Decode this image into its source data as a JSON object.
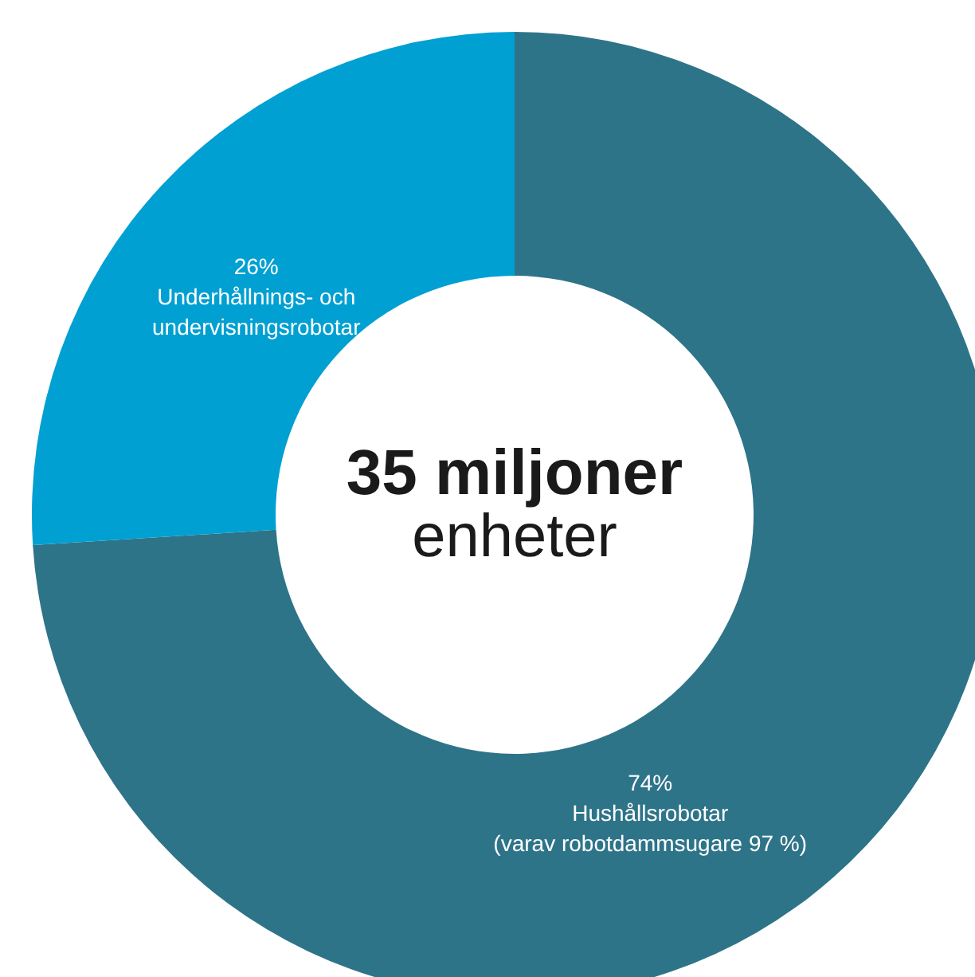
{
  "chart_data": {
    "type": "donut",
    "title": "35 miljoner",
    "subtitle": "enheter",
    "categories": [
      "Hushållsrobotar",
      "Underhållnings- och undervisningsrobotar"
    ],
    "values": [
      74,
      26
    ],
    "value_labels": [
      "74%",
      "26%"
    ],
    "colors": [
      "#2e7489",
      "#00a0d2"
    ],
    "annotations": [
      "(varav robotdammsugare 97 %)"
    ]
  }
}
